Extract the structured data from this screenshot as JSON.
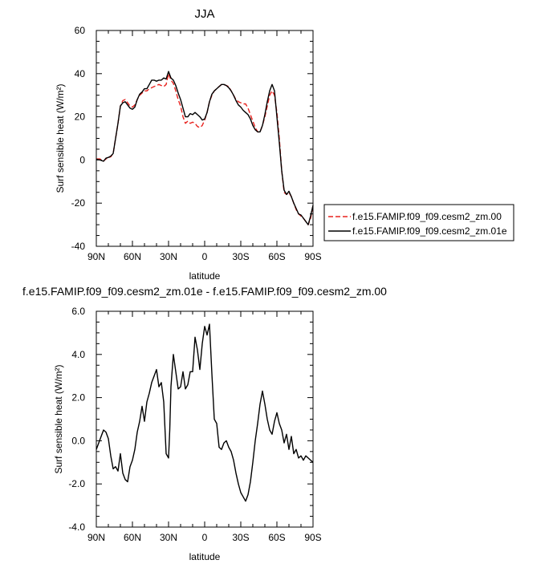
{
  "chart_data": [
    {
      "type": "line",
      "title": "JJA",
      "xlabel": "latitude",
      "ylabel": "Surf sensible heat (W/m²)",
      "xlim": [
        90,
        -90
      ],
      "ylim": [
        -40,
        60
      ],
      "xticks": [
        90,
        60,
        30,
        0,
        -30,
        -60,
        -90
      ],
      "xtick_labels": [
        "90N",
        "60N",
        "30N",
        "0",
        "30S",
        "60S",
        "90S"
      ],
      "yticks": [
        -40,
        -20,
        0,
        20,
        40,
        60
      ],
      "ytick_labels": [
        "-40",
        "-20",
        "0",
        "20",
        "40",
        "60"
      ],
      "grid": false,
      "legend_position": "outside-right",
      "series": [
        {
          "name": "f.e15.FAMIP.f09_f09.cesm2_zm.00",
          "color": "#e8221e",
          "dash": "dashed",
          "x": [
            90,
            87,
            84,
            82,
            80,
            78,
            76,
            74,
            72,
            70,
            68,
            66,
            64,
            62,
            60,
            58,
            56,
            54,
            52,
            50,
            48,
            46,
            44,
            42,
            40,
            38,
            36,
            34,
            32,
            30,
            28,
            26,
            24,
            22,
            20,
            18,
            16,
            14,
            12,
            10,
            8,
            6,
            4,
            2,
            0,
            -2,
            -4,
            -6,
            -8,
            -10,
            -12,
            -14,
            -16,
            -18,
            -20,
            -22,
            -24,
            -26,
            -28,
            -30,
            -32,
            -34,
            -36,
            -38,
            -40,
            -42,
            -44,
            -46,
            -48,
            -50,
            -52,
            -54,
            -56,
            -58,
            -60,
            -62,
            -64,
            -66,
            -68,
            -70,
            -72,
            -74,
            -76,
            -78,
            -80,
            -82,
            -84,
            -86,
            -88,
            -90
          ],
          "y": [
            0.5,
            0.5,
            -0.5,
            0.5,
            1,
            1.5,
            3,
            10,
            17,
            25,
            27.5,
            28,
            26.5,
            25,
            24.5,
            25.5,
            28,
            30,
            31,
            32,
            32,
            33,
            33.5,
            34,
            34.5,
            35,
            34.5,
            34,
            35,
            40,
            37,
            35.5,
            32,
            28,
            25,
            20,
            17,
            18,
            17,
            17.5,
            17,
            15.5,
            15,
            16,
            18.5,
            22,
            27,
            30,
            32,
            33,
            34,
            35,
            35,
            34.5,
            34,
            32,
            30,
            28,
            27,
            26.5,
            26,
            26,
            24,
            21,
            18,
            15,
            13,
            13,
            16,
            20,
            25,
            30,
            32,
            30,
            22,
            10,
            -5,
            -15,
            -16,
            -15,
            -17,
            -20,
            -23,
            -25,
            -26,
            -27,
            -28.5,
            -30,
            -27,
            -21
          ]
        },
        {
          "name": "f.e15.FAMIP.f09_f09.cesm2_zm.01e",
          "color": "#000000",
          "dash": "solid",
          "x": [
            90,
            87,
            84,
            82,
            80,
            78,
            76,
            74,
            72,
            70,
            68,
            66,
            64,
            62,
            60,
            58,
            56,
            54,
            52,
            50,
            48,
            46,
            44,
            42,
            40,
            38,
            36,
            34,
            32,
            30,
            28,
            26,
            24,
            22,
            20,
            18,
            16,
            14,
            12,
            10,
            8,
            6,
            4,
            2,
            0,
            -2,
            -4,
            -6,
            -8,
            -10,
            -12,
            -14,
            -16,
            -18,
            -20,
            -22,
            -24,
            -26,
            -28,
            -30,
            -32,
            -34,
            -36,
            -38,
            -40,
            -42,
            -44,
            -46,
            -48,
            -50,
            -52,
            -54,
            -56,
            -58,
            -60,
            -62,
            -64,
            -66,
            -68,
            -70,
            -72,
            -74,
            -76,
            -78,
            -80,
            -82,
            -84,
            -86,
            -88,
            -90
          ],
          "y": [
            0.3,
            0,
            -0.6,
            0.8,
            1.2,
            1.8,
            3,
            10,
            17,
            25,
            26.5,
            27,
            25.5,
            24,
            23.5,
            24.5,
            28,
            30.5,
            31.5,
            33,
            33,
            35,
            37,
            37,
            36.5,
            37,
            37,
            38,
            37.5,
            41,
            38,
            37,
            34.5,
            31,
            28,
            24,
            20,
            20,
            21.5,
            21,
            22,
            21,
            20,
            18.5,
            19,
            22,
            27,
            30.5,
            32,
            33,
            34,
            35,
            35,
            34.5,
            33.5,
            32,
            30,
            27.5,
            25.5,
            24.5,
            23,
            22,
            21,
            19,
            16,
            14,
            13,
            13,
            16,
            21,
            27,
            32,
            35,
            32,
            20,
            8,
            -5,
            -14,
            -16,
            -14.5,
            -17,
            -20,
            -22.5,
            -25,
            -25.5,
            -27,
            -28.5,
            -30,
            -26,
            -21
          ]
        }
      ]
    },
    {
      "type": "line",
      "title": "f.e15.FAMIP.f09_f09.cesm2_zm.01e - f.e15.FAMIP.f09_f09.cesm2_zm.00",
      "xlabel": "latitude",
      "ylabel": "Surf sensible heat (W/m²)",
      "xlim": [
        90,
        -90
      ],
      "ylim": [
        -4,
        6
      ],
      "xticks": [
        90,
        60,
        30,
        0,
        -30,
        -60,
        -90
      ],
      "xtick_labels": [
        "90N",
        "60N",
        "30N",
        "0",
        "30S",
        "60S",
        "90S"
      ],
      "yticks": [
        -4,
        -2,
        0,
        2,
        4,
        6
      ],
      "ytick_labels": [
        "-4.0",
        "-2.0",
        "0.0",
        "2.0",
        "4.0",
        "6.0"
      ],
      "grid": false,
      "series": [
        {
          "color": "#000000",
          "dash": "solid",
          "x": [
            90,
            88,
            86,
            84,
            82,
            80,
            78,
            76,
            74,
            72,
            70,
            68,
            66,
            64,
            62,
            60,
            58,
            56,
            54,
            52,
            50,
            48,
            46,
            44,
            42,
            40,
            38,
            36,
            34,
            32,
            30,
            29,
            28,
            26,
            24,
            22,
            20,
            18,
            16,
            14,
            12,
            10,
            8,
            6,
            4,
            2,
            0,
            -2,
            -4,
            -6,
            -8,
            -10,
            -12,
            -14,
            -16,
            -18,
            -20,
            -22,
            -24,
            -26,
            -28,
            -30,
            -32,
            -34,
            -36,
            -38,
            -40,
            -42,
            -44,
            -46,
            -48,
            -50,
            -52,
            -54,
            -56,
            -58,
            -60,
            -62,
            -64,
            -66,
            -68,
            -70,
            -72,
            -74,
            -76,
            -78,
            -80,
            -82,
            -84,
            -86,
            -88,
            -90
          ],
          "y": [
            -0.4,
            -0.1,
            0.2,
            0.5,
            0.4,
            0.1,
            -0.7,
            -1.3,
            -1.2,
            -1.4,
            -0.6,
            -1.5,
            -1.8,
            -1.9,
            -1.2,
            -0.9,
            -0.4,
            0.4,
            0.9,
            1.6,
            0.9,
            1.8,
            2.2,
            2.7,
            3.0,
            3.3,
            2.5,
            2.7,
            1.8,
            -0.6,
            -0.8,
            0.5,
            2.5,
            4.0,
            3.2,
            2.4,
            2.5,
            3.2,
            2.4,
            2.6,
            3.2,
            3.2,
            4.8,
            4.2,
            3.3,
            4.5,
            5.3,
            4.9,
            5.4,
            3.1,
            1.0,
            0.8,
            -0.3,
            -0.4,
            -0.1,
            0.0,
            -0.3,
            -0.5,
            -0.9,
            -1.5,
            -2.0,
            -2.4,
            -2.6,
            -2.8,
            -2.5,
            -1.9,
            -1.0,
            0.0,
            0.8,
            1.7,
            2.3,
            1.7,
            1.0,
            0.5,
            0.3,
            0.9,
            1.3,
            0.8,
            0.5,
            -0.1,
            0.3,
            -0.4,
            0.2,
            -0.6,
            -0.4,
            -0.8,
            -0.7,
            -0.9,
            -0.7,
            -0.8,
            -0.9,
            -1.0
          ]
        }
      ]
    }
  ]
}
